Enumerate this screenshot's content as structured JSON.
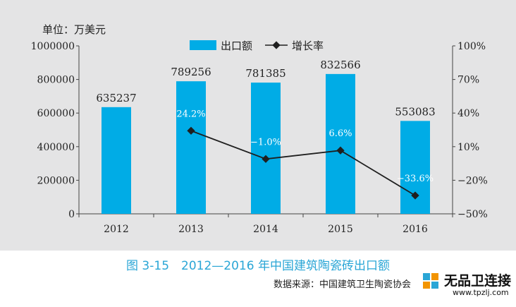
{
  "unit_label": "单位：万美元",
  "figure_title": "图 3-15　2012—2016 年中国建筑陶瓷砖出口额",
  "source": "数据来源：中国建筑卫生陶瓷协会",
  "watermark": {
    "text": "无品卫连接",
    "url": "www.tpzlj.com"
  },
  "colors": {
    "bar": "#00ace6",
    "line": "#1f1f1f",
    "rate_label": "#ffffff",
    "background": "#e4e4e5"
  },
  "chart_data": {
    "type": "bar",
    "categories": [
      "2012",
      "2013",
      "2014",
      "2015",
      "2016"
    ],
    "series": [
      {
        "name": "出口额",
        "type": "bar",
        "axis": "left",
        "values": [
          635237,
          789256,
          781385,
          832566,
          553083
        ],
        "labels": [
          "635237",
          "789256",
          "781385",
          "832566",
          "553083"
        ]
      },
      {
        "name": "增长率",
        "type": "line",
        "axis": "right",
        "values": [
          null,
          24.2,
          -1.0,
          6.6,
          -33.6
        ],
        "labels": [
          "",
          "24.2%",
          "−1.0%",
          "6.6%",
          "−33.6%"
        ]
      }
    ],
    "y_left": {
      "lim": [
        0,
        1000000
      ],
      "ticks": [
        "0",
        "200000",
        "400000",
        "600000",
        "800000",
        "1000000"
      ]
    },
    "y_right": {
      "lim": [
        -50,
        100
      ],
      "ticks": [
        "−50%",
        "−20%",
        "10%",
        "40%",
        "70%",
        "100%"
      ]
    },
    "legend": {
      "position": "top-center",
      "items": [
        "出口额",
        "增长率"
      ]
    },
    "grid": false
  }
}
